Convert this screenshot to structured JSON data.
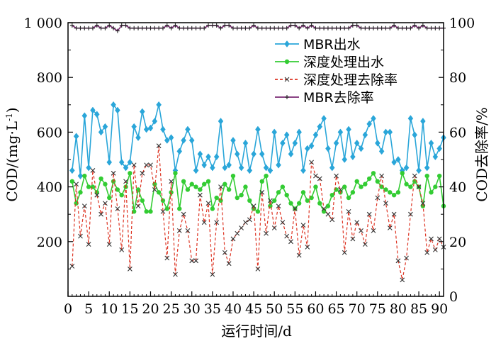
{
  "chart_data": {
    "type": "line",
    "xlabel": "运行时间/d",
    "ylabel_left": "COD/(mg·L",
    "ylabel_left_sup": "-1",
    "ylabel_left_close": ")",
    "ylabel_right": "COD去除率/%",
    "xlim": [
      0,
      91
    ],
    "ylim_left": [
      0,
      1000
    ],
    "ylim_right": [
      0,
      100
    ],
    "x_ticks": [
      0,
      5,
      10,
      15,
      20,
      25,
      30,
      35,
      40,
      45,
      50,
      55,
      60,
      65,
      70,
      75,
      80,
      85,
      90
    ],
    "x_tick_labels": [
      "0",
      "5",
      "10",
      "15",
      "20",
      "25",
      "30",
      "35",
      "40",
      "45",
      "50",
      "55",
      "60",
      "65",
      "70",
      "75",
      "80",
      "85",
      "90"
    ],
    "y_left_ticks": [
      200,
      400,
      600,
      800,
      1000
    ],
    "y_left_tick_labels": [
      "200",
      "400",
      "600",
      "800",
      "1 000"
    ],
    "y_right_ticks": [
      0,
      20,
      40,
      60,
      80,
      100
    ],
    "y_right_tick_labels": [
      "0",
      "20",
      "40",
      "60",
      "80",
      "100"
    ],
    "legend_position": "top-center",
    "series": [
      {
        "name": "MBR出水",
        "axis": "left",
        "color": "#2aa6d9",
        "marker": "diamond",
        "style": "solid",
        "x": [
          1,
          2,
          3,
          4,
          5,
          6,
          7,
          8,
          9,
          10,
          11,
          12,
          13,
          14,
          15,
          16,
          17,
          18,
          19,
          20,
          21,
          22,
          23,
          24,
          25,
          26,
          27,
          28,
          29,
          30,
          31,
          32,
          33,
          34,
          35,
          36,
          37,
          38,
          39,
          40,
          41,
          42,
          43,
          44,
          45,
          46,
          47,
          48,
          49,
          50,
          51,
          52,
          53,
          54,
          55,
          56,
          57,
          58,
          59,
          60,
          61,
          62,
          63,
          64,
          65,
          66,
          67,
          68,
          69,
          70,
          71,
          72,
          73,
          74,
          75,
          76,
          77,
          78,
          79,
          80,
          81,
          82,
          83,
          84,
          85,
          86,
          87,
          88,
          89,
          90,
          91
        ],
        "values": [
          460,
          585,
          440,
          660,
          470,
          680,
          665,
          600,
          620,
          490,
          700,
          680,
          490,
          470,
          490,
          620,
          580,
          675,
          610,
          615,
          640,
          700,
          610,
          570,
          580,
          460,
          530,
          570,
          610,
          570,
          460,
          520,
          480,
          510,
          470,
          510,
          640,
          470,
          480,
          570,
          520,
          470,
          560,
          460,
          520,
          610,
          520,
          470,
          460,
          600,
          480,
          560,
          590,
          520,
          560,
          600,
          460,
          540,
          550,
          590,
          620,
          650,
          540,
          470,
          560,
          600,
          500,
          610,
          510,
          560,
          540,
          590,
          630,
          650,
          560,
          530,
          600,
          600,
          490,
          500,
          460,
          470,
          650,
          590,
          460,
          640,
          470,
          560,
          510,
          540,
          580
        ]
      },
      {
        "name": "深度处理出水",
        "axis": "left",
        "color": "#33cc33",
        "marker": "circle",
        "style": "solid",
        "x": [
          1,
          2,
          3,
          4,
          5,
          6,
          7,
          8,
          9,
          10,
          11,
          12,
          13,
          14,
          15,
          16,
          17,
          18,
          19,
          20,
          21,
          22,
          23,
          24,
          25,
          26,
          27,
          28,
          29,
          30,
          31,
          32,
          33,
          34,
          35,
          36,
          37,
          38,
          39,
          40,
          41,
          42,
          43,
          44,
          45,
          46,
          47,
          48,
          49,
          50,
          51,
          52,
          53,
          54,
          55,
          56,
          57,
          58,
          59,
          60,
          61,
          62,
          63,
          64,
          65,
          66,
          67,
          68,
          69,
          70,
          71,
          72,
          73,
          74,
          75,
          76,
          77,
          78,
          79,
          80,
          81,
          82,
          83,
          84,
          85,
          86,
          87,
          88,
          89,
          90,
          91
        ],
        "values": [
          420,
          340,
          380,
          440,
          400,
          400,
          380,
          430,
          410,
          360,
          420,
          390,
          370,
          400,
          450,
          310,
          390,
          350,
          310,
          310,
          410,
          380,
          350,
          320,
          380,
          450,
          320,
          420,
          390,
          410,
          400,
          390,
          410,
          420,
          320,
          360,
          350,
          410,
          390,
          440,
          360,
          370,
          400,
          350,
          320,
          310,
          420,
          440,
          330,
          350,
          380,
          400,
          370,
          340,
          320,
          340,
          380,
          350,
          360,
          400,
          340,
          310,
          330,
          370,
          390,
          380,
          400,
          360,
          380,
          420,
          400,
          410,
          430,
          450,
          420,
          400,
          390,
          380,
          370,
          380,
          450,
          410,
          400,
          420,
          400,
          330,
          440,
          380,
          400,
          440,
          330
        ]
      },
      {
        "name": "深度处理去除率",
        "axis": "right",
        "color": "#dd3322",
        "marker": "x",
        "style": "dashed",
        "x": [
          1,
          2,
          3,
          4,
          5,
          6,
          7,
          8,
          9,
          10,
          11,
          12,
          13,
          14,
          15,
          16,
          17,
          18,
          19,
          20,
          21,
          22,
          23,
          24,
          25,
          26,
          27,
          28,
          29,
          30,
          31,
          32,
          33,
          34,
          35,
          36,
          37,
          38,
          39,
          40,
          41,
          42,
          43,
          44,
          45,
          46,
          47,
          48,
          49,
          50,
          51,
          52,
          53,
          54,
          55,
          56,
          57,
          58,
          59,
          60,
          61,
          62,
          63,
          64,
          65,
          66,
          67,
          68,
          69,
          70,
          71,
          72,
          73,
          74,
          75,
          76,
          77,
          78,
          79,
          80,
          81,
          82,
          83,
          84,
          85,
          86,
          87,
          88,
          89,
          90,
          91
        ],
        "values": [
          11,
          41,
          22,
          33,
          19,
          46,
          37,
          30,
          34,
          19,
          45,
          32,
          17,
          42,
          10,
          48,
          33,
          45,
          48,
          48,
          39,
          55,
          31,
          14,
          42,
          8,
          24,
          30,
          24,
          13,
          13,
          37,
          27,
          34,
          8,
          27,
          40,
          16,
          12,
          21,
          23,
          25,
          27,
          28,
          33,
          10,
          38,
          23,
          35,
          25,
          33,
          27,
          22,
          20,
          32,
          15,
          26,
          18,
          49,
          44,
          43,
          32,
          30,
          28,
          44,
          39,
          16,
          31,
          21,
          27,
          24,
          19,
          30,
          24,
          36,
          44,
          34,
          25,
          30,
          13,
          6,
          14,
          30,
          44,
          40,
          34,
          16,
          21,
          17,
          21,
          18
        ]
      },
      {
        "name": "MBR去除率",
        "axis": "right",
        "color": "#7a2a73",
        "marker": "plus",
        "style": "solid",
        "x": [
          1,
          2,
          3,
          4,
          5,
          6,
          7,
          8,
          9,
          10,
          11,
          12,
          13,
          14,
          15,
          16,
          17,
          18,
          19,
          20,
          21,
          22,
          23,
          24,
          25,
          26,
          27,
          28,
          29,
          30,
          31,
          32,
          33,
          34,
          35,
          36,
          37,
          38,
          39,
          40,
          41,
          42,
          43,
          44,
          45,
          46,
          47,
          48,
          49,
          50,
          51,
          52,
          53,
          54,
          55,
          56,
          57,
          58,
          59,
          60,
          61,
          62,
          63,
          64,
          65,
          66,
          67,
          68,
          69,
          70,
          71,
          72,
          73,
          74,
          75,
          76,
          77,
          78,
          79,
          80,
          81,
          82,
          83,
          84,
          85,
          86,
          87,
          88,
          89,
          90,
          91
        ],
        "values": [
          99,
          98,
          98,
          98,
          98,
          98,
          99,
          98,
          98,
          99,
          98,
          97,
          99,
          99,
          98,
          98,
          98,
          98,
          98,
          98,
          98,
          98,
          98,
          99,
          98,
          99,
          98,
          98,
          98,
          98,
          98,
          98,
          98,
          99,
          99,
          99,
          98,
          99,
          99,
          98,
          98,
          98,
          98,
          98,
          99,
          98,
          98,
          98,
          98,
          98,
          98,
          98,
          98,
          99,
          99,
          98,
          99,
          98,
          99,
          98,
          98,
          98,
          98,
          98,
          98,
          98,
          98,
          98,
          99,
          99,
          98,
          98,
          98,
          98,
          98,
          98,
          98,
          98,
          99,
          98,
          98,
          98,
          98,
          99,
          98,
          99,
          98,
          98,
          98,
          98,
          98
        ]
      }
    ]
  }
}
